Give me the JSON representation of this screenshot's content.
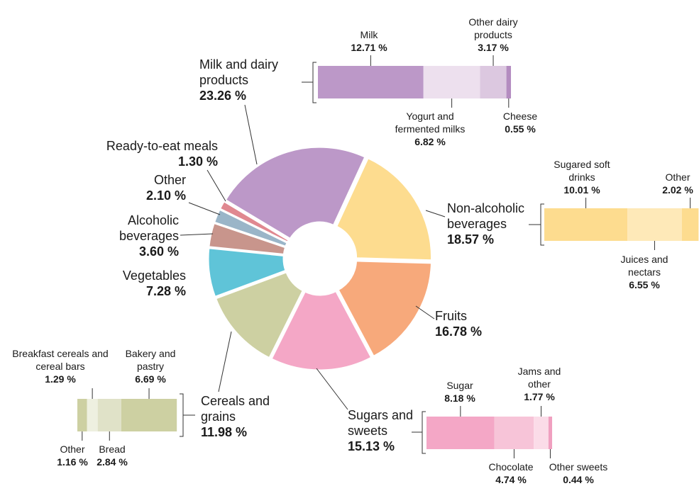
{
  "chart_data": {
    "type": "pie",
    "donut": true,
    "categories": [
      "Milk and dairy products",
      "Non-alcoholic beverages",
      "Fruits",
      "Sugars and sweets",
      "Cereals and grains",
      "Vegetables",
      "Alcoholic beverages",
      "Other",
      "Ready-to-eat meals"
    ],
    "values": [
      23.26,
      18.57,
      16.78,
      15.13,
      11.98,
      7.28,
      3.6,
      2.1,
      1.3
    ],
    "value_labels": [
      "23.26 %",
      "18.57 %",
      "16.78 %",
      "15.13 %",
      "11.98 %",
      "7.28 %",
      "3.60 %",
      "2.10 %",
      "1.30 %"
    ],
    "colors": [
      "#bc98c8",
      "#fddc8f",
      "#f7a97b",
      "#f4a7c6",
      "#cdd0a2",
      "#5fc4d8",
      "#c8958c",
      "#9ab5c8",
      "#e08890"
    ],
    "breakdowns": [
      {
        "categories": [
          "Milk",
          "Yogurt and fermented milks",
          "Other dairy products",
          "Cheese"
        ],
        "values": [
          12.71,
          6.82,
          3.17,
          0.55
        ],
        "value_labels": [
          "12.71 %",
          "6.82 %",
          "3.17 %",
          "0.55 %"
        ],
        "colors": [
          "#bc98c8",
          "#ede0ee",
          "#dcc8e0",
          "#b48cc0"
        ]
      },
      {
        "categories": [
          "Sugared soft drinks",
          "Juices and nectars",
          "Other"
        ],
        "values": [
          10.01,
          6.55,
          2.02
        ],
        "value_labels": [
          "10.01 %",
          "6.55 %",
          "2.02 %"
        ],
        "colors": [
          "#fddc8f",
          "#fee9b8",
          "#fddc8f"
        ]
      },
      null,
      {
        "categories": [
          "Sugar",
          "Chocolate",
          "Jams and other",
          "Other sweets"
        ],
        "values": [
          8.18,
          4.74,
          1.77,
          0.44
        ],
        "value_labels": [
          "8.18 %",
          "4.74 %",
          "1.77 %",
          "0.44 %"
        ],
        "colors": [
          "#f4a7c6",
          "#f7c4d8",
          "#fbdce8",
          "#f0a0c0"
        ]
      },
      {
        "categories": [
          "Other",
          "Breakfast cereals and cereal bars",
          "Bread",
          "Bakery and pastry"
        ],
        "values": [
          1.16,
          1.29,
          2.84,
          6.69
        ],
        "value_labels": [
          "1.16 %",
          "1.29 %",
          "2.84 %",
          "6.69 %"
        ],
        "colors": [
          "#cdd0a2",
          "#eef0e0",
          "#e0e2c8",
          "#cdd0a2"
        ]
      },
      null,
      null,
      null,
      null
    ]
  }
}
